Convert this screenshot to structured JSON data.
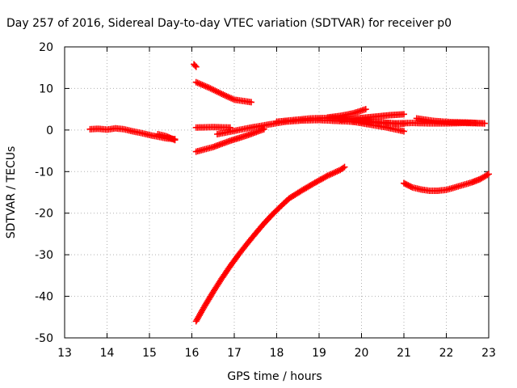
{
  "chart_data": {
    "type": "scatter",
    "title": "Day 257 of 2016, Sidereal Day-to-day VTEC variation (SDTVAR) for receiver p0",
    "xlabel": "GPS time / hours",
    "ylabel": "SDTVAR / TECUs",
    "xlim": [
      13,
      23
    ],
    "ylim": [
      -50,
      20
    ],
    "xticks": [
      "13",
      "14",
      "15",
      "16",
      "17",
      "18",
      "19",
      "20",
      "21",
      "22",
      "23"
    ],
    "yticks": [
      "20",
      "10",
      "0",
      "-10",
      "-20",
      "-30",
      "-40",
      "-50"
    ],
    "grid": true,
    "marker_color": "#ff0000",
    "series": [
      {
        "x": [
          13.6,
          13.8,
          14.0,
          14.2,
          14.4,
          14.6,
          14.8,
          15.0,
          15.2,
          15.4,
          15.6
        ],
        "y": [
          0.2,
          0.3,
          0.1,
          0.4,
          0.2,
          -0.3,
          -0.7,
          -1.2,
          -1.6,
          -2.0,
          -2.2
        ]
      },
      {
        "x": [
          15.2,
          15.4,
          15.6
        ],
        "y": [
          -1.0,
          -1.5,
          -2.4
        ]
      },
      {
        "x": [
          16.05,
          16.1
        ],
        "y": [
          15.8,
          15.2
        ]
      },
      {
        "x": [
          16.1,
          16.4,
          16.7,
          17.0,
          17.4
        ],
        "y": [
          11.5,
          10.2,
          8.7,
          7.3,
          6.7
        ]
      },
      {
        "x": [
          16.1,
          16.5,
          16.9
        ],
        "y": [
          0.6,
          0.7,
          0.6
        ]
      },
      {
        "x": [
          16.1,
          16.5,
          16.9,
          17.3,
          17.7
        ],
        "y": [
          -5.2,
          -4.1,
          -2.6,
          -1.3,
          0.2
        ]
      },
      {
        "x": [
          16.6,
          17.0,
          17.4,
          17.8,
          18.2,
          18.6,
          19.0,
          19.4,
          19.8,
          20.2,
          20.6,
          21.0
        ],
        "y": [
          -1.0,
          -0.2,
          0.6,
          1.3,
          2.0,
          2.3,
          2.4,
          2.2,
          2.0,
          1.8,
          1.6,
          1.5
        ]
      },
      {
        "x": [
          18.0,
          18.4,
          18.8,
          19.2,
          19.6,
          20.0,
          20.4,
          20.8,
          21.2,
          21.6,
          22.0,
          22.4,
          22.9
        ],
        "y": [
          2.0,
          2.4,
          2.8,
          2.9,
          2.7,
          2.3,
          1.9,
          1.6,
          1.7,
          1.6,
          1.6,
          1.7,
          1.6
        ]
      },
      {
        "x": [
          19.2,
          19.5,
          19.8,
          20.1
        ],
        "y": [
          3.0,
          3.4,
          4.0,
          5.0
        ]
      },
      {
        "x": [
          19.5,
          19.8,
          20.1,
          20.4,
          20.7,
          21.0
        ],
        "y": [
          2.5,
          2.7,
          3.0,
          3.3,
          3.6,
          3.8
        ]
      },
      {
        "x": [
          19.8,
          20.2,
          20.6,
          21.0
        ],
        "y": [
          2.0,
          1.3,
          0.6,
          -0.3
        ]
      },
      {
        "x": [
          21.3,
          21.7,
          22.1,
          22.5,
          22.9
        ],
        "y": [
          2.8,
          2.2,
          1.9,
          1.8,
          1.6
        ]
      },
      {
        "x": [
          16.1,
          16.3,
          16.5,
          16.7,
          16.9,
          17.1,
          17.3,
          17.5,
          17.7,
          17.9,
          18.1,
          18.3,
          18.6,
          18.9,
          19.2,
          19.5,
          19.6
        ],
        "y": [
          -46,
          -42.4,
          -39.0,
          -35.8,
          -32.8,
          -30.0,
          -27.4,
          -24.9,
          -22.5,
          -20.3,
          -18.3,
          -16.4,
          -14.5,
          -12.7,
          -11.0,
          -9.6,
          -8.9
        ]
      },
      {
        "x": [
          21.0,
          21.2,
          21.4,
          21.6,
          21.8,
          22.0,
          22.2,
          22.4,
          22.6,
          22.8,
          23.0
        ],
        "y": [
          -12.8,
          -13.8,
          -14.3,
          -14.6,
          -14.6,
          -14.4,
          -13.8,
          -13.2,
          -12.6,
          -11.8,
          -10.6
        ]
      }
    ]
  }
}
